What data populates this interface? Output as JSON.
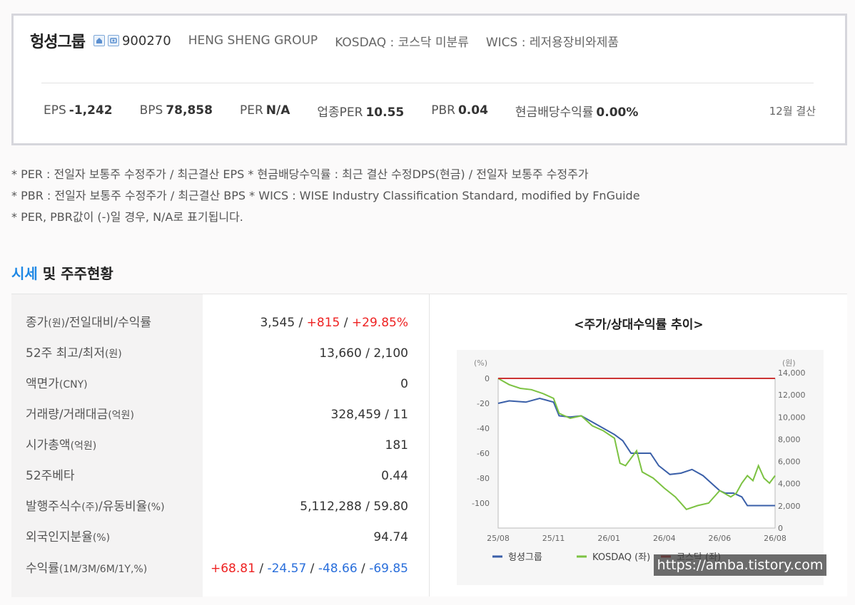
{
  "company": {
    "name": "헝셩그룹",
    "code": "900270",
    "english_name": "HENG SHENG GROUP",
    "market": "KOSDAQ : 코스닥 미분류",
    "wics": "WICS : 레저용장비와제품",
    "icons": [
      "home-icon",
      "phone-icon"
    ]
  },
  "metrics": [
    {
      "label": "EPS",
      "value": "-1,242"
    },
    {
      "label": "BPS",
      "value": "78,858"
    },
    {
      "label": "PER",
      "value": "N/A"
    },
    {
      "label": "업종PER",
      "value": "10.55"
    },
    {
      "label": "PBR",
      "value": "0.04"
    },
    {
      "label": "현금배당수익률",
      "value": "0.00%"
    }
  ],
  "settlement": "12월 결산",
  "notes": [
    "* PER : 전일자 보통주 수정주가 / 최근결산 EPS * 현금배당수익률 : 최근 결산 수정DPS(현금) / 전일자 보통주 수정주가",
    "* PBR : 전일자 보통주 수정주가 / 최근결산 BPS * WICS : WISE Industry Classification Standard, modified by FnGuide",
    "* PER, PBR값이 (-)일 경우, N/A로 표기됩니다."
  ],
  "section": {
    "title_accent": "시세",
    "title_rest": " 및 주주현황"
  },
  "table": {
    "rows": [
      {
        "label": "종가",
        "label_small": "(원)",
        "label_rest": "/전일대비/수익률",
        "label_small2": "",
        "value": "3,545 / ",
        "value_red1": "+815",
        "value_sep": " / ",
        "value_red2": "+29.85%"
      },
      {
        "label": "52주 최고/최저",
        "label_small": "(원)",
        "value": "13,660 / 2,100"
      },
      {
        "label": "액면가",
        "label_small": "(CNY)",
        "value": "0"
      },
      {
        "label": "거래량/거래대금",
        "label_small": "(억원)",
        "value": "328,459 / 11"
      },
      {
        "label": "시가총액",
        "label_small": "(억원)",
        "value": "181"
      },
      {
        "label": "52주베타",
        "label_small": "",
        "value": "0.44"
      },
      {
        "label": "발행주식수",
        "label_small": "(주)",
        "label_rest": "/유동비율",
        "label_small2": "(%)",
        "value": "5,112,288 / 59.80"
      },
      {
        "label": "외국인지분율",
        "label_small": "(%)",
        "value": "94.74"
      },
      {
        "label": "수익률",
        "label_small": "(1M/3M/6M/1Y,%)",
        "returns": [
          "+68.81",
          "-24.57",
          "-48.66",
          "-69.85"
        ]
      }
    ]
  },
  "chart_title": "<주가/상대수익률 추이>",
  "chart_data": {
    "type": "line",
    "left_axis_unit": "(%)",
    "right_axis_unit": "(원)",
    "left_ticks": [
      "0",
      "-20",
      "-40",
      "-60",
      "-80",
      "-100"
    ],
    "right_ticks": [
      "14,000",
      "12,000",
      "10,000",
      "8,000",
      "6,000",
      "4,000",
      "2,000",
      "0"
    ],
    "x_ticks": [
      "25/08",
      "25/11",
      "26/01",
      "26/04",
      "26/06",
      "26/08"
    ],
    "ylim_left": [
      -120,
      0
    ],
    "ylim_right": [
      0,
      14000
    ],
    "legend": [
      {
        "name": "헝셩그룹",
        "color": "#3a5fa8"
      },
      {
        "name": "KOSDAQ (좌)",
        "color": "#7cc242"
      },
      {
        "name": "코스닥 (좌)",
        "color": "#cc3333"
      }
    ],
    "series": [
      {
        "name": "헝셩그룹",
        "axis": "left",
        "color": "#3a5fa8",
        "x": [
          0,
          0.04,
          0.1,
          0.15,
          0.2,
          0.22,
          0.26,
          0.3,
          0.34,
          0.38,
          0.42,
          0.45,
          0.48,
          0.5,
          0.55,
          0.58,
          0.62,
          0.66,
          0.7,
          0.74,
          0.78,
          0.8,
          0.82,
          0.85,
          0.88,
          0.9,
          0.94,
          1.0
        ],
        "y": [
          -20,
          -18,
          -19,
          -16,
          -19,
          -30,
          -31,
          -30,
          -35,
          -40,
          -45,
          -50,
          -60,
          -60,
          -60,
          -70,
          -77,
          -76,
          -73,
          -78,
          -86,
          -90,
          -92,
          -92,
          -95,
          -102,
          -102,
          -102
        ]
      },
      {
        "name": "KOSDAQ (좌)",
        "axis": "left",
        "color": "#7cc242",
        "x": [
          0,
          0.04,
          0.08,
          0.12,
          0.16,
          0.2,
          0.22,
          0.26,
          0.3,
          0.34,
          0.38,
          0.42,
          0.44,
          0.46,
          0.5,
          0.52,
          0.56,
          0.6,
          0.64,
          0.68,
          0.72,
          0.76,
          0.8,
          0.84,
          0.86,
          0.88,
          0.9,
          0.92,
          0.94,
          0.96,
          0.98,
          1.0
        ],
        "y": [
          0,
          -5,
          -8,
          -9,
          -12,
          -16,
          -28,
          -32,
          -30,
          -38,
          -42,
          -48,
          -68,
          -70,
          -58,
          -75,
          -80,
          -88,
          -95,
          -105,
          -102,
          -100,
          -90,
          -95,
          -92,
          -84,
          -78,
          -82,
          -70,
          -80,
          -84,
          -78
        ]
      },
      {
        "name": "코스닥 (좌)",
        "axis": "left",
        "color": "#cc3333",
        "x": [
          0,
          1.0
        ],
        "y": [
          0,
          0
        ]
      }
    ]
  },
  "watermark": "https://amba.tistory.com"
}
